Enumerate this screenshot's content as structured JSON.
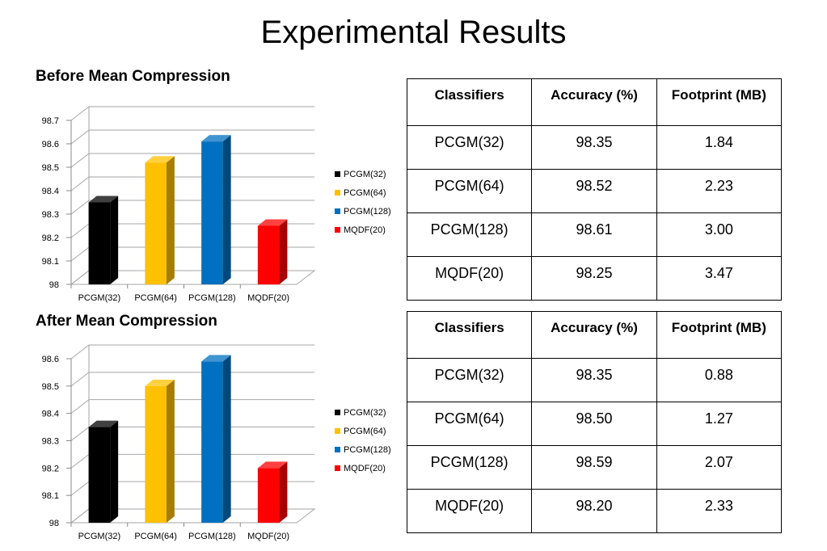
{
  "title": "Experimental Results",
  "chart_data": [
    {
      "type": "bar",
      "title": "Before Mean Compression",
      "categories": [
        "PCGM(32)",
        "PCGM(64)",
        "PCGM(128)",
        "MQDF(20)"
      ],
      "values": [
        98.35,
        98.52,
        98.61,
        98.25
      ],
      "colors": [
        "#000000",
        "#FFC000",
        "#0070C0",
        "#FF0000"
      ],
      "ylim": [
        98,
        98.7
      ],
      "yticks": [
        "98",
        "98.1",
        "98.2",
        "98.3",
        "98.4",
        "98.5",
        "98.6",
        "98.7"
      ],
      "legend": [
        "PCGM(32)",
        "PCGM(64)",
        "PCGM(128)",
        "MQDF(20)"
      ],
      "legend_position": "right",
      "grid": true
    },
    {
      "type": "bar",
      "title": "After Mean Compression",
      "categories": [
        "PCGM(32)",
        "PCGM(64)",
        "PCGM(128)",
        "MQDF(20)"
      ],
      "values": [
        98.35,
        98.5,
        98.59,
        98.2
      ],
      "colors": [
        "#000000",
        "#FFC000",
        "#0070C0",
        "#FF0000"
      ],
      "ylim": [
        98,
        98.6
      ],
      "yticks": [
        "98",
        "98.1",
        "98.2",
        "98.3",
        "98.4",
        "98.5",
        "98.6"
      ],
      "legend": [
        "PCGM(32)",
        "PCGM(64)",
        "PCGM(128)",
        "MQDF(20)"
      ],
      "legend_position": "right",
      "grid": true
    }
  ],
  "tables": [
    {
      "headers": [
        "Classifiers",
        "Accuracy (%)",
        "Footprint (MB)"
      ],
      "rows": [
        [
          "PCGM(32)",
          "98.35",
          "1.84"
        ],
        [
          "PCGM(64)",
          "98.52",
          "2.23"
        ],
        [
          "PCGM(128)",
          "98.61",
          "3.00"
        ],
        [
          "MQDF(20)",
          "98.25",
          "3.47"
        ]
      ]
    },
    {
      "headers": [
        "Classifiers",
        "Accuracy (%)",
        "Footprint (MB)"
      ],
      "rows": [
        [
          "PCGM(32)",
          "98.35",
          "0.88"
        ],
        [
          "PCGM(64)",
          "98.50",
          "1.27"
        ],
        [
          "PCGM(128)",
          "98.59",
          "2.07"
        ],
        [
          "MQDF(20)",
          "98.20",
          "2.33"
        ]
      ]
    }
  ]
}
